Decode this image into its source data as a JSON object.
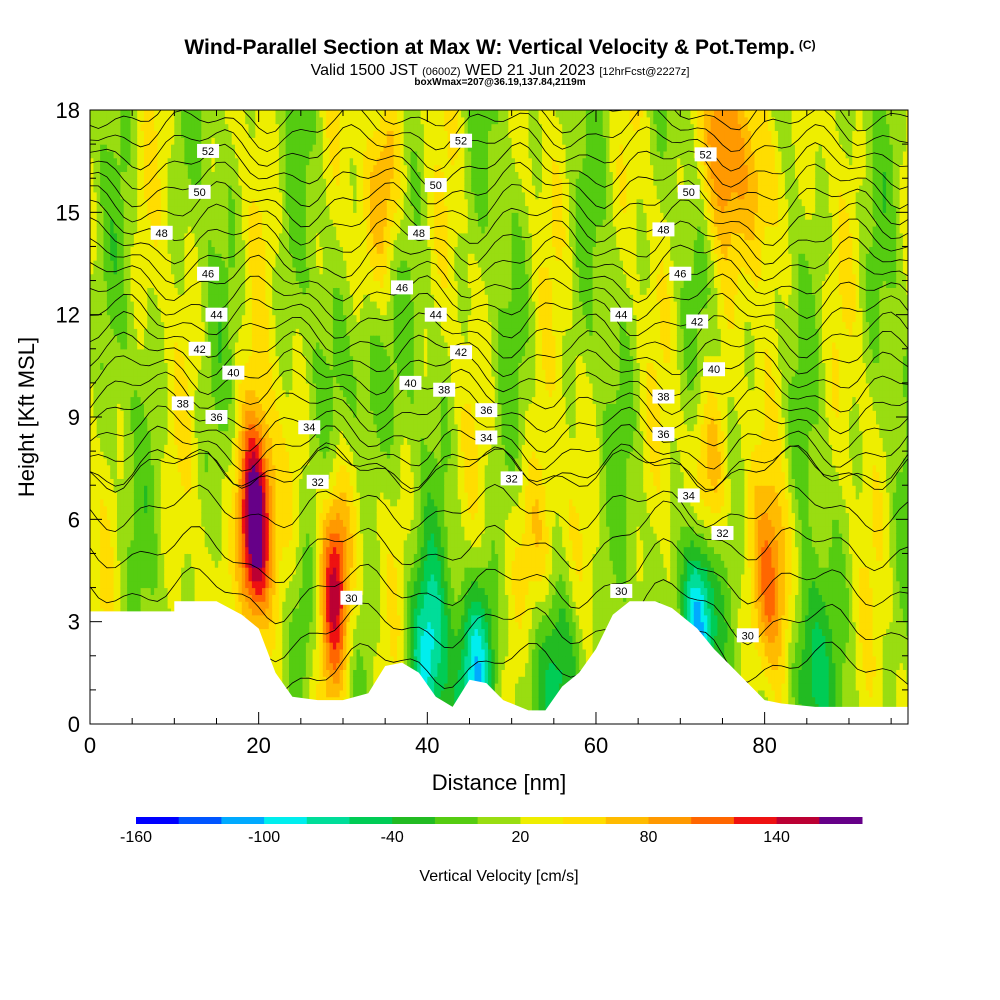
{
  "header": {
    "title": "Wind-Parallel Section at Max W: Vertical Velocity & Pot.Temp.",
    "title_mark": "(C)",
    "valid_a": "Valid 1500 JST",
    "valid_zulu": "(0600Z)",
    "valid_b": "WED 21 Jun 2023",
    "forecast": "[12hrFcst@2227z]",
    "box_info": "boxWmax=207@36.19,137.84,2119m"
  },
  "chart_data": {
    "type": "heatmap",
    "xlabel": "Distance [nm]",
    "ylabel": "Height [Kft MSL]",
    "xlim": [
      0,
      97
    ],
    "ylim": [
      0,
      18
    ],
    "xticks": [
      0,
      20,
      40,
      60,
      80
    ],
    "yticks": [
      0,
      3,
      6,
      9,
      12,
      15,
      18
    ],
    "colorbar": {
      "label": "Vertical Velocity [cm/s]",
      "tick_labels": [
        "-160",
        "-100",
        "-40",
        "20",
        "80",
        "140"
      ],
      "tick_values": [
        -160,
        -100,
        -40,
        20,
        80,
        140
      ],
      "levels": [
        -160,
        -140,
        -120,
        -100,
        -80,
        -60,
        -40,
        -20,
        0,
        20,
        40,
        60,
        80,
        100,
        120,
        140,
        160,
        180
      ],
      "colors": [
        "#0000ff",
        "#0055ff",
        "#00aaff",
        "#00eeee",
        "#00dd99",
        "#00cc55",
        "#22bb22",
        "#55cc11",
        "#99dd11",
        "#eeee00",
        "#ffdd00",
        "#ffbb00",
        "#ff9900",
        "#ff6600",
        "#ee1111",
        "#bb0033",
        "#660088"
      ]
    },
    "terrain": [
      [
        0,
        3.3
      ],
      [
        10,
        3.3
      ],
      [
        10,
        3.6
      ],
      [
        15,
        3.6
      ],
      [
        18,
        3.2
      ],
      [
        20,
        2.8
      ],
      [
        22,
        1.5
      ],
      [
        24,
        0.8
      ],
      [
        27,
        0.7
      ],
      [
        30,
        0.7
      ],
      [
        33,
        0.9
      ],
      [
        35,
        1.7
      ],
      [
        37,
        1.8
      ],
      [
        39,
        1.5
      ],
      [
        41,
        0.8
      ],
      [
        43,
        0.5
      ],
      [
        45,
        1.3
      ],
      [
        47,
        1.2
      ],
      [
        49,
        0.7
      ],
      [
        52,
        0.4
      ],
      [
        54,
        0.4
      ],
      [
        56,
        1.1
      ],
      [
        58,
        1.5
      ],
      [
        60,
        2.2
      ],
      [
        62,
        3.2
      ],
      [
        64,
        3.6
      ],
      [
        67,
        3.6
      ],
      [
        69,
        3.4
      ],
      [
        72,
        2.8
      ],
      [
        74,
        2.2
      ],
      [
        76,
        1.7
      ],
      [
        78,
        1.2
      ],
      [
        80,
        0.7
      ],
      [
        82,
        0.6
      ],
      [
        86,
        0.5
      ],
      [
        90,
        0.5
      ],
      [
        97,
        0.5
      ]
    ],
    "updraft_cores": [
      {
        "x": 19.5,
        "z": 5.8,
        "w": 200
      },
      {
        "x": 29.0,
        "z": 4.0,
        "w": 140
      },
      {
        "x": 35.0,
        "z": 16.0,
        "w": 60
      },
      {
        "x": 53.0,
        "z": 5.0,
        "w": 60
      },
      {
        "x": 73.5,
        "z": 7.0,
        "w": 70
      },
      {
        "x": 74.5,
        "z": 17.0,
        "w": 80
      },
      {
        "x": 81.0,
        "z": 4.0,
        "w": 80
      },
      {
        "x": 80.0,
        "z": 16.0,
        "w": 60
      }
    ],
    "downdraft_cores": [
      {
        "x": 72.0,
        "z": 3.0,
        "w": -150
      },
      {
        "x": 40.0,
        "z": 2.0,
        "w": -90
      },
      {
        "x": 46.0,
        "z": 1.5,
        "w": -110
      },
      {
        "x": 56.0,
        "z": 1.5,
        "w": -70
      },
      {
        "x": 85.0,
        "z": 1.5,
        "w": -70
      },
      {
        "x": 25.0,
        "z": 3.0,
        "w": -40
      },
      {
        "x": 33.0,
        "z": 10.0,
        "w": -50
      }
    ],
    "contour_labels": [
      {
        "text": "52",
        "x": 14,
        "z": 16.8
      },
      {
        "text": "52",
        "x": 44,
        "z": 17.1
      },
      {
        "text": "52",
        "x": 73,
        "z": 16.7
      },
      {
        "text": "50",
        "x": 13,
        "z": 15.6
      },
      {
        "text": "50",
        "x": 41,
        "z": 15.8
      },
      {
        "text": "50",
        "x": 71,
        "z": 15.6
      },
      {
        "text": "48",
        "x": 8.5,
        "z": 14.4
      },
      {
        "text": "48",
        "x": 39,
        "z": 14.4
      },
      {
        "text": "48",
        "x": 68,
        "z": 14.5
      },
      {
        "text": "46",
        "x": 14,
        "z": 13.2
      },
      {
        "text": "46",
        "x": 37,
        "z": 12.8
      },
      {
        "text": "46",
        "x": 70,
        "z": 13.2
      },
      {
        "text": "44",
        "x": 15,
        "z": 12.0
      },
      {
        "text": "44",
        "x": 41,
        "z": 12.0
      },
      {
        "text": "44",
        "x": 63,
        "z": 12.0
      },
      {
        "text": "42",
        "x": 13,
        "z": 11.0
      },
      {
        "text": "42",
        "x": 44,
        "z": 10.9
      },
      {
        "text": "42",
        "x": 72,
        "z": 11.8
      },
      {
        "text": "40",
        "x": 17,
        "z": 10.3
      },
      {
        "text": "40",
        "x": 38,
        "z": 10.0
      },
      {
        "text": "40",
        "x": 74,
        "z": 10.4
      },
      {
        "text": "38",
        "x": 11,
        "z": 9.4
      },
      {
        "text": "38",
        "x": 42,
        "z": 9.8
      },
      {
        "text": "38",
        "x": 68,
        "z": 9.6
      },
      {
        "text": "36",
        "x": 15,
        "z": 9.0
      },
      {
        "text": "36",
        "x": 47,
        "z": 9.2
      },
      {
        "text": "36",
        "x": 68,
        "z": 8.5
      },
      {
        "text": "34",
        "x": 26,
        "z": 8.7
      },
      {
        "text": "34",
        "x": 47,
        "z": 8.4
      },
      {
        "text": "34",
        "x": 71,
        "z": 6.7
      },
      {
        "text": "32",
        "x": 27,
        "z": 7.1
      },
      {
        "text": "32",
        "x": 50,
        "z": 7.2
      },
      {
        "text": "32",
        "x": 75,
        "z": 5.6
      },
      {
        "text": "30",
        "x": 31,
        "z": 3.7
      },
      {
        "text": "30",
        "x": 63,
        "z": 3.9
      },
      {
        "text": "30",
        "x": 78,
        "z": 2.6
      }
    ]
  }
}
